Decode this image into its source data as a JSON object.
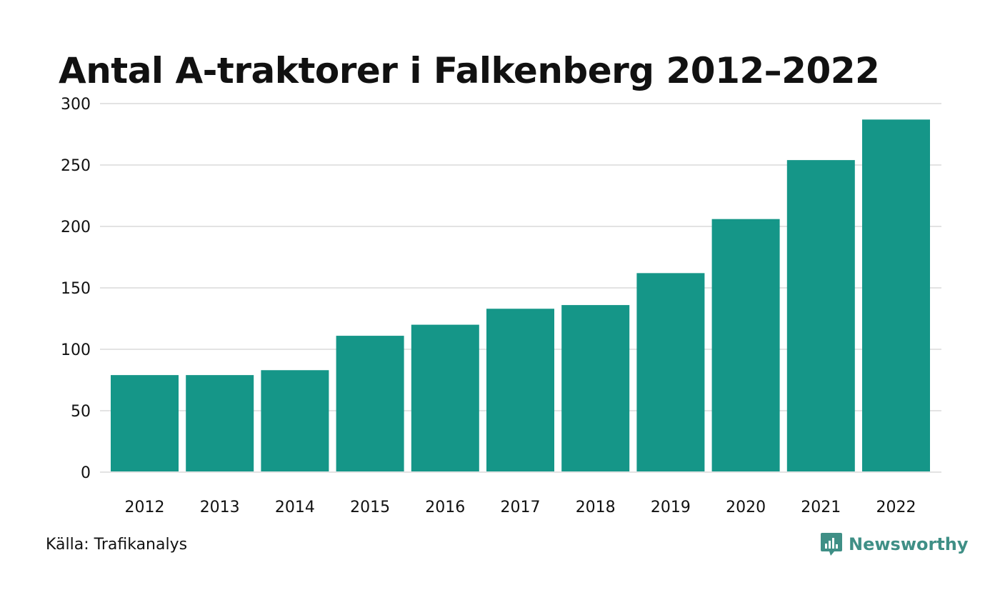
{
  "title": "Antal A-traktorer i Falkenberg 2012–2022",
  "source": "Källa: Trafikanalys",
  "brand": {
    "name": "Newsworthy",
    "icon": "newsworthy-logo-icon",
    "color": "#3f8f86"
  },
  "colors": {
    "bar": "#159688",
    "grid": "#e3e3e3",
    "text": "#111111"
  },
  "chart_data": {
    "type": "bar",
    "title": "Antal A-traktorer i Falkenberg 2012–2022",
    "xlabel": "",
    "ylabel": "",
    "categories": [
      "2012",
      "2013",
      "2014",
      "2015",
      "2016",
      "2017",
      "2018",
      "2019",
      "2020",
      "2021",
      "2022"
    ],
    "values": [
      79,
      79,
      83,
      111,
      120,
      133,
      136,
      162,
      206,
      254,
      287
    ],
    "ylim": [
      0,
      300
    ],
    "yticks": [
      0,
      50,
      100,
      150,
      200,
      250,
      300
    ],
    "grid": true,
    "legend": "none"
  }
}
